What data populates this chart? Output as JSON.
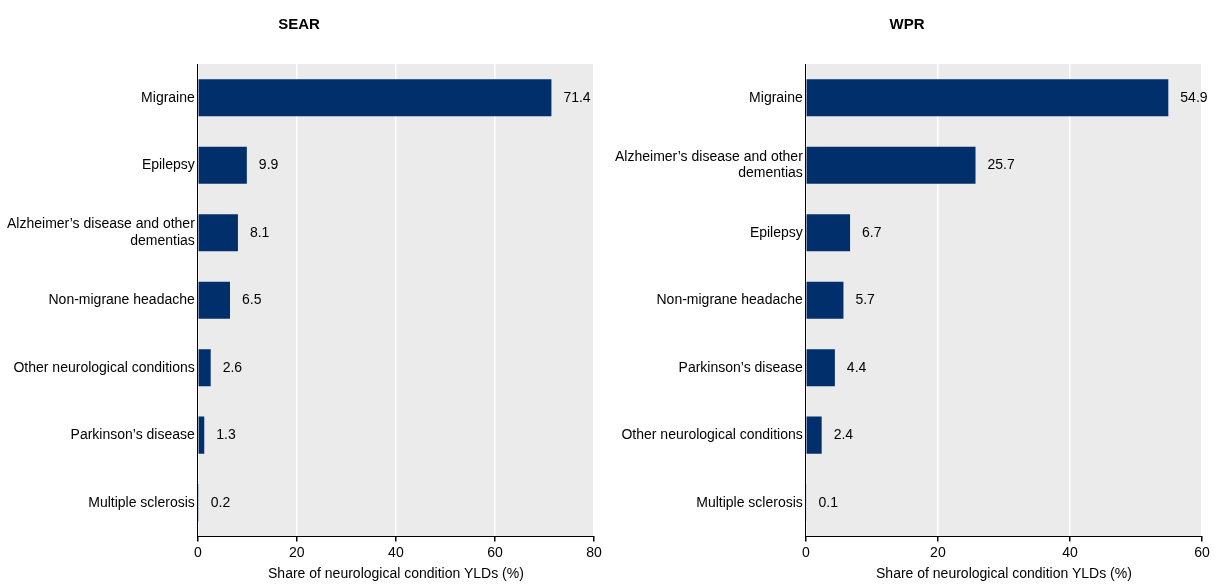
{
  "chart_data": [
    {
      "type": "bar",
      "orientation": "horizontal",
      "title": "SEAR",
      "categories": [
        "Migraine",
        "Epilepsy",
        "Alzheimer’s disease and other dementias",
        "Non-migrane headache",
        "Other neurological conditions",
        "Parkinson’s disease",
        "Multiple sclerosis"
      ],
      "values": [
        71.4,
        9.9,
        8.1,
        6.5,
        2.6,
        1.3,
        0.2
      ],
      "color": "#002f6c",
      "xlim": [
        0,
        80
      ],
      "xticks": [
        0,
        20,
        40,
        60,
        80
      ],
      "grid": "x",
      "data_labels": true,
      "xlabel": "Share of neurological condition YLDs (%)"
    },
    {
      "type": "bar",
      "orientation": "horizontal",
      "title": "WPR",
      "categories": [
        "Migraine",
        "Alzheimer’s disease and other dementias",
        "Epilepsy",
        "Non-migrane headache",
        "Parkinson’s disease",
        "Other neurological conditions",
        "Multiple sclerosis"
      ],
      "values": [
        54.9,
        25.7,
        6.7,
        5.7,
        4.4,
        2.4,
        0.1
      ],
      "color": "#002f6c",
      "xlim": [
        0,
        60
      ],
      "xticks": [
        0,
        20,
        40,
        60
      ],
      "grid": "x",
      "data_labels": true,
      "xlabel": "Share of neurological condition YLDs (%)"
    }
  ]
}
